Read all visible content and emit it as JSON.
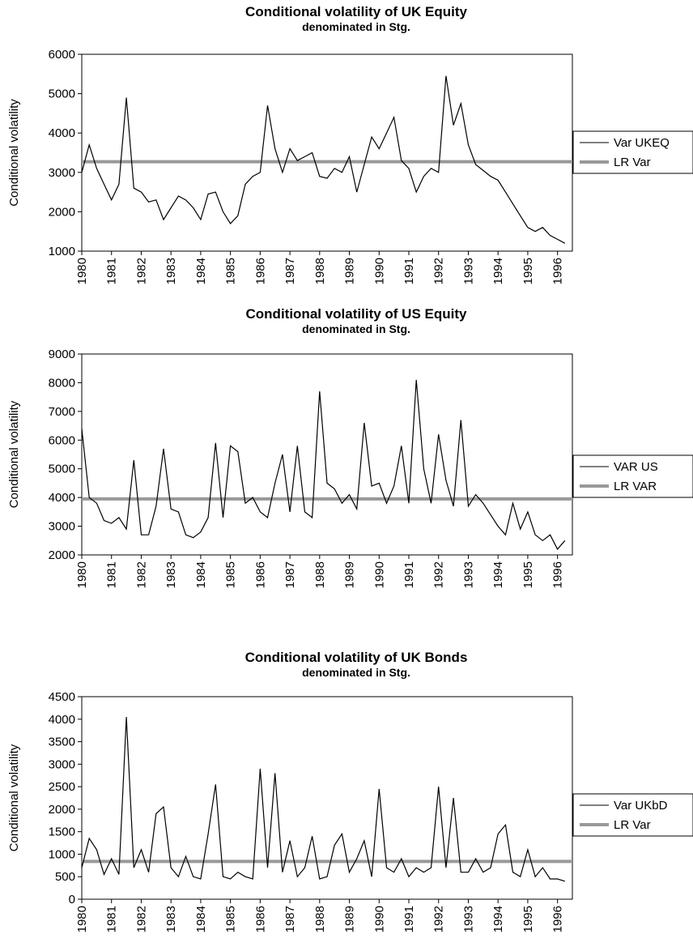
{
  "chart_data": [
    {
      "type": "line",
      "title": "Conditional volatility of UK Equity",
      "subtitle": "denominated in Stg.",
      "y_label": "Conditional volatility",
      "categories": [
        "1980",
        null,
        null,
        null,
        "1981",
        null,
        null,
        null,
        "1982",
        null,
        null,
        null,
        "1983",
        null,
        null,
        null,
        "1984",
        null,
        null,
        null,
        "1985",
        null,
        null,
        null,
        "1986",
        null,
        null,
        null,
        "1987",
        null,
        null,
        null,
        "1988",
        null,
        null,
        null,
        "1989",
        null,
        null,
        null,
        "1990",
        null,
        null,
        null,
        "1991",
        null,
        null,
        null,
        "1992",
        null,
        null,
        null,
        "1993",
        null,
        null,
        null,
        "1994",
        null,
        null,
        null,
        "1995",
        null,
        null,
        null,
        "1996",
        null
      ],
      "series": [
        {
          "name": "Var UKEQ",
          "color": "#000000",
          "values": [
            3000,
            3700,
            3100,
            2700,
            2300,
            2700,
            4900,
            2600,
            2500,
            2250,
            2300,
            1800,
            2100,
            2400,
            2300,
            2100,
            1800,
            2450,
            2500,
            2000,
            1700,
            1900,
            2700,
            2900,
            3000,
            4700,
            3600,
            3000,
            3600,
            3300,
            3400,
            3500,
            2900,
            2850,
            3100,
            3000,
            3400,
            2500,
            3200,
            3900,
            3600,
            4000,
            4400,
            3300,
            3100,
            2500,
            2900,
            3100,
            3000,
            5450,
            4200,
            4750,
            3700,
            3200,
            3050,
            2900,
            2800,
            2500,
            2200,
            1900,
            1600,
            1500,
            1600,
            1400,
            1300,
            1200
          ]
        }
      ],
      "hlines": [
        {
          "name": "LR Var",
          "color": "#999999",
          "value": 3270
        }
      ],
      "ylim": [
        1000,
        6000
      ],
      "yticks": [
        1000,
        2000,
        3000,
        4000,
        5000,
        6000
      ]
    },
    {
      "type": "line",
      "title": "Conditional volatility of US Equity",
      "subtitle": "denominated in Stg.",
      "y_label": "Conditional volatility",
      "categories": [
        "1980",
        null,
        null,
        null,
        "1981",
        null,
        null,
        null,
        "1982",
        null,
        null,
        null,
        "1983",
        null,
        null,
        null,
        "1984",
        null,
        null,
        null,
        "1985",
        null,
        null,
        null,
        "1986",
        null,
        null,
        null,
        "1987",
        null,
        null,
        null,
        "1988",
        null,
        null,
        null,
        "1989",
        null,
        null,
        null,
        "1990",
        null,
        null,
        null,
        "1991",
        null,
        null,
        null,
        "1992",
        null,
        null,
        null,
        "1993",
        null,
        null,
        null,
        "1994",
        null,
        null,
        null,
        "1995",
        null,
        null,
        null,
        "1996",
        null
      ],
      "series": [
        {
          "name": "VAR US",
          "color": "#000000",
          "values": [
            6400,
            4000,
            3800,
            3200,
            3100,
            3300,
            2900,
            5300,
            2700,
            2700,
            3700,
            5700,
            3600,
            3500,
            2700,
            2600,
            2800,
            3300,
            5900,
            3300,
            5800,
            5600,
            3800,
            4000,
            3500,
            3300,
            4500,
            5500,
            3500,
            5800,
            3500,
            3300,
            7700,
            4500,
            4300,
            3800,
            4100,
            3600,
            6600,
            4400,
            4500,
            3800,
            4400,
            5800,
            3800,
            8100,
            5000,
            3800,
            6200,
            4600,
            3700,
            6700,
            3700,
            4100,
            3800,
            3400,
            3000,
            2700,
            3800,
            2900,
            3500,
            2700,
            2500,
            2700,
            2200,
            2500
          ]
        }
      ],
      "hlines": [
        {
          "name": "LR VAR",
          "color": "#999999",
          "value": 3950
        }
      ],
      "ylim": [
        2000,
        9000
      ],
      "yticks": [
        2000,
        3000,
        4000,
        5000,
        6000,
        7000,
        8000,
        9000
      ]
    },
    {
      "type": "line",
      "title": "Conditional volatility of UK Bonds",
      "subtitle": "denominated in Stg.",
      "y_label": "Conditional volatility",
      "categories": [
        "1980",
        null,
        null,
        null,
        "1981",
        null,
        null,
        null,
        "1982",
        null,
        null,
        null,
        "1983",
        null,
        null,
        null,
        "1984",
        null,
        null,
        null,
        "1985",
        null,
        null,
        null,
        "1986",
        null,
        null,
        null,
        "1987",
        null,
        null,
        null,
        "1988",
        null,
        null,
        null,
        "1989",
        null,
        null,
        null,
        "1990",
        null,
        null,
        null,
        "1991",
        null,
        null,
        null,
        "1992",
        null,
        null,
        null,
        "1993",
        null,
        null,
        null,
        "1994",
        null,
        null,
        null,
        "1995",
        null,
        null,
        null,
        "1996",
        null
      ],
      "series": [
        {
          "name": "Var UKbD",
          "color": "#000000",
          "values": [
            700,
            1350,
            1100,
            550,
            900,
            550,
            4050,
            700,
            1100,
            600,
            1900,
            2050,
            700,
            500,
            950,
            500,
            450,
            1450,
            2550,
            500,
            450,
            600,
            500,
            450,
            2900,
            700,
            2800,
            600,
            1300,
            500,
            700,
            1400,
            450,
            500,
            1200,
            1450,
            600,
            900,
            1300,
            500,
            2450,
            700,
            600,
            900,
            500,
            700,
            600,
            700,
            2500,
            700,
            2250,
            600,
            600,
            900,
            600,
            700,
            1450,
            1650,
            600,
            500,
            1100,
            500,
            700,
            450,
            450,
            400
          ]
        }
      ],
      "hlines": [
        {
          "name": "LR Var",
          "color": "#999999",
          "value": 840
        }
      ],
      "ylim": [
        0,
        4500
      ],
      "yticks": [
        0,
        500,
        1000,
        1500,
        2000,
        2500,
        3000,
        3500,
        4000,
        4500
      ]
    }
  ]
}
